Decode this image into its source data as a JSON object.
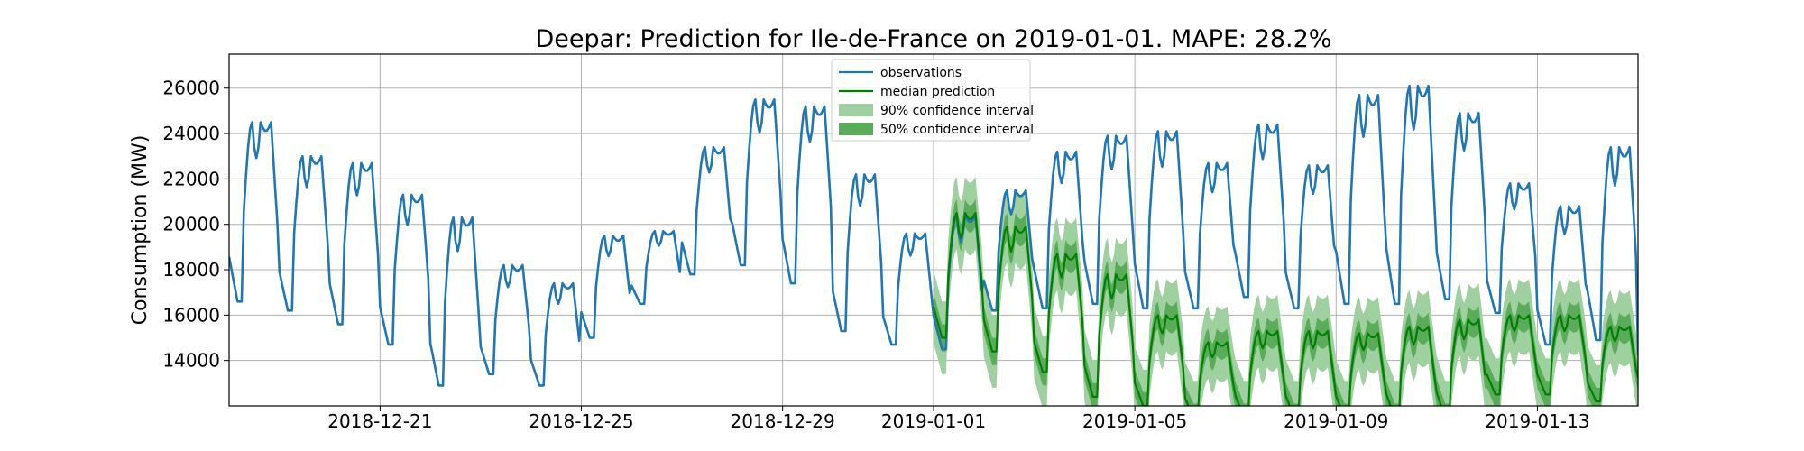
{
  "chart_data": {
    "type": "line",
    "title": "Deepar: Prediction for Ile-de-France on 2019-01-01. MAPE: 28.2%",
    "xlabel": "",
    "ylabel": "Consumption (MW)",
    "xlim": [
      "2018-12-18",
      "2019-01-15"
    ],
    "ylim": [
      12000,
      27500
    ],
    "grid": true,
    "legend_position": "top-center",
    "x_ticks": [
      "2018-12-21",
      "2018-12-25",
      "2018-12-29",
      "2019-01-01",
      "2019-01-05",
      "2019-01-09",
      "2019-01-13"
    ],
    "y_ticks": [
      14000,
      16000,
      18000,
      20000,
      22000,
      24000,
      26000
    ],
    "colors": {
      "observations": "#1f77b4",
      "median": "#008000",
      "ci90": "#9fd09f",
      "ci50": "#5aac5a"
    },
    "legend": [
      {
        "label": "observations",
        "kind": "line",
        "color": "#1f77b4"
      },
      {
        "label": "median prediction",
        "kind": "line",
        "color": "#008000"
      },
      {
        "label": "90% confidence interval",
        "kind": "band",
        "color": "#9fd09f"
      },
      {
        "label": "50% confidence interval",
        "kind": "band",
        "color": "#5aac5a"
      }
    ],
    "observations": {
      "name": "observations",
      "start": "2018-12-18",
      "daily_peaks": [
        24500,
        23000,
        22700,
        21300,
        20300,
        18200,
        17400,
        19500,
        19700,
        23400,
        25500,
        25200,
        22200,
        19600,
        20400,
        21500,
        23200,
        23900,
        24100,
        22700,
        24400,
        22600,
        25700,
        26100,
        24900,
        21800,
        20800,
        23400,
        15000
      ],
      "daily_troughs": [
        16600,
        16200,
        15600,
        14700,
        12900,
        13400,
        12900,
        15000,
        16500,
        17800,
        18200,
        17400,
        15300,
        14700,
        14500,
        16200,
        16300,
        16500,
        16300,
        16300,
        16800,
        16300,
        16500,
        16500,
        16700,
        16100,
        14700,
        14900,
        14000
      ]
    },
    "prediction": {
      "name": "median prediction",
      "start": "2019-01-01",
      "daily_peaks": [
        20500,
        19900,
        18700,
        17800,
        16000,
        14800,
        15300,
        15300,
        15200,
        15500,
        15800,
        16000,
        16000,
        15500,
        15800
      ],
      "daily_troughs": [
        15000,
        14400,
        13500,
        12400,
        12000,
        11500,
        11500,
        11500,
        11500,
        11500,
        11500,
        12500,
        12500,
        12200,
        12400
      ],
      "ci90_halfwidth": 1600,
      "ci50_halfwidth": 600
    }
  }
}
